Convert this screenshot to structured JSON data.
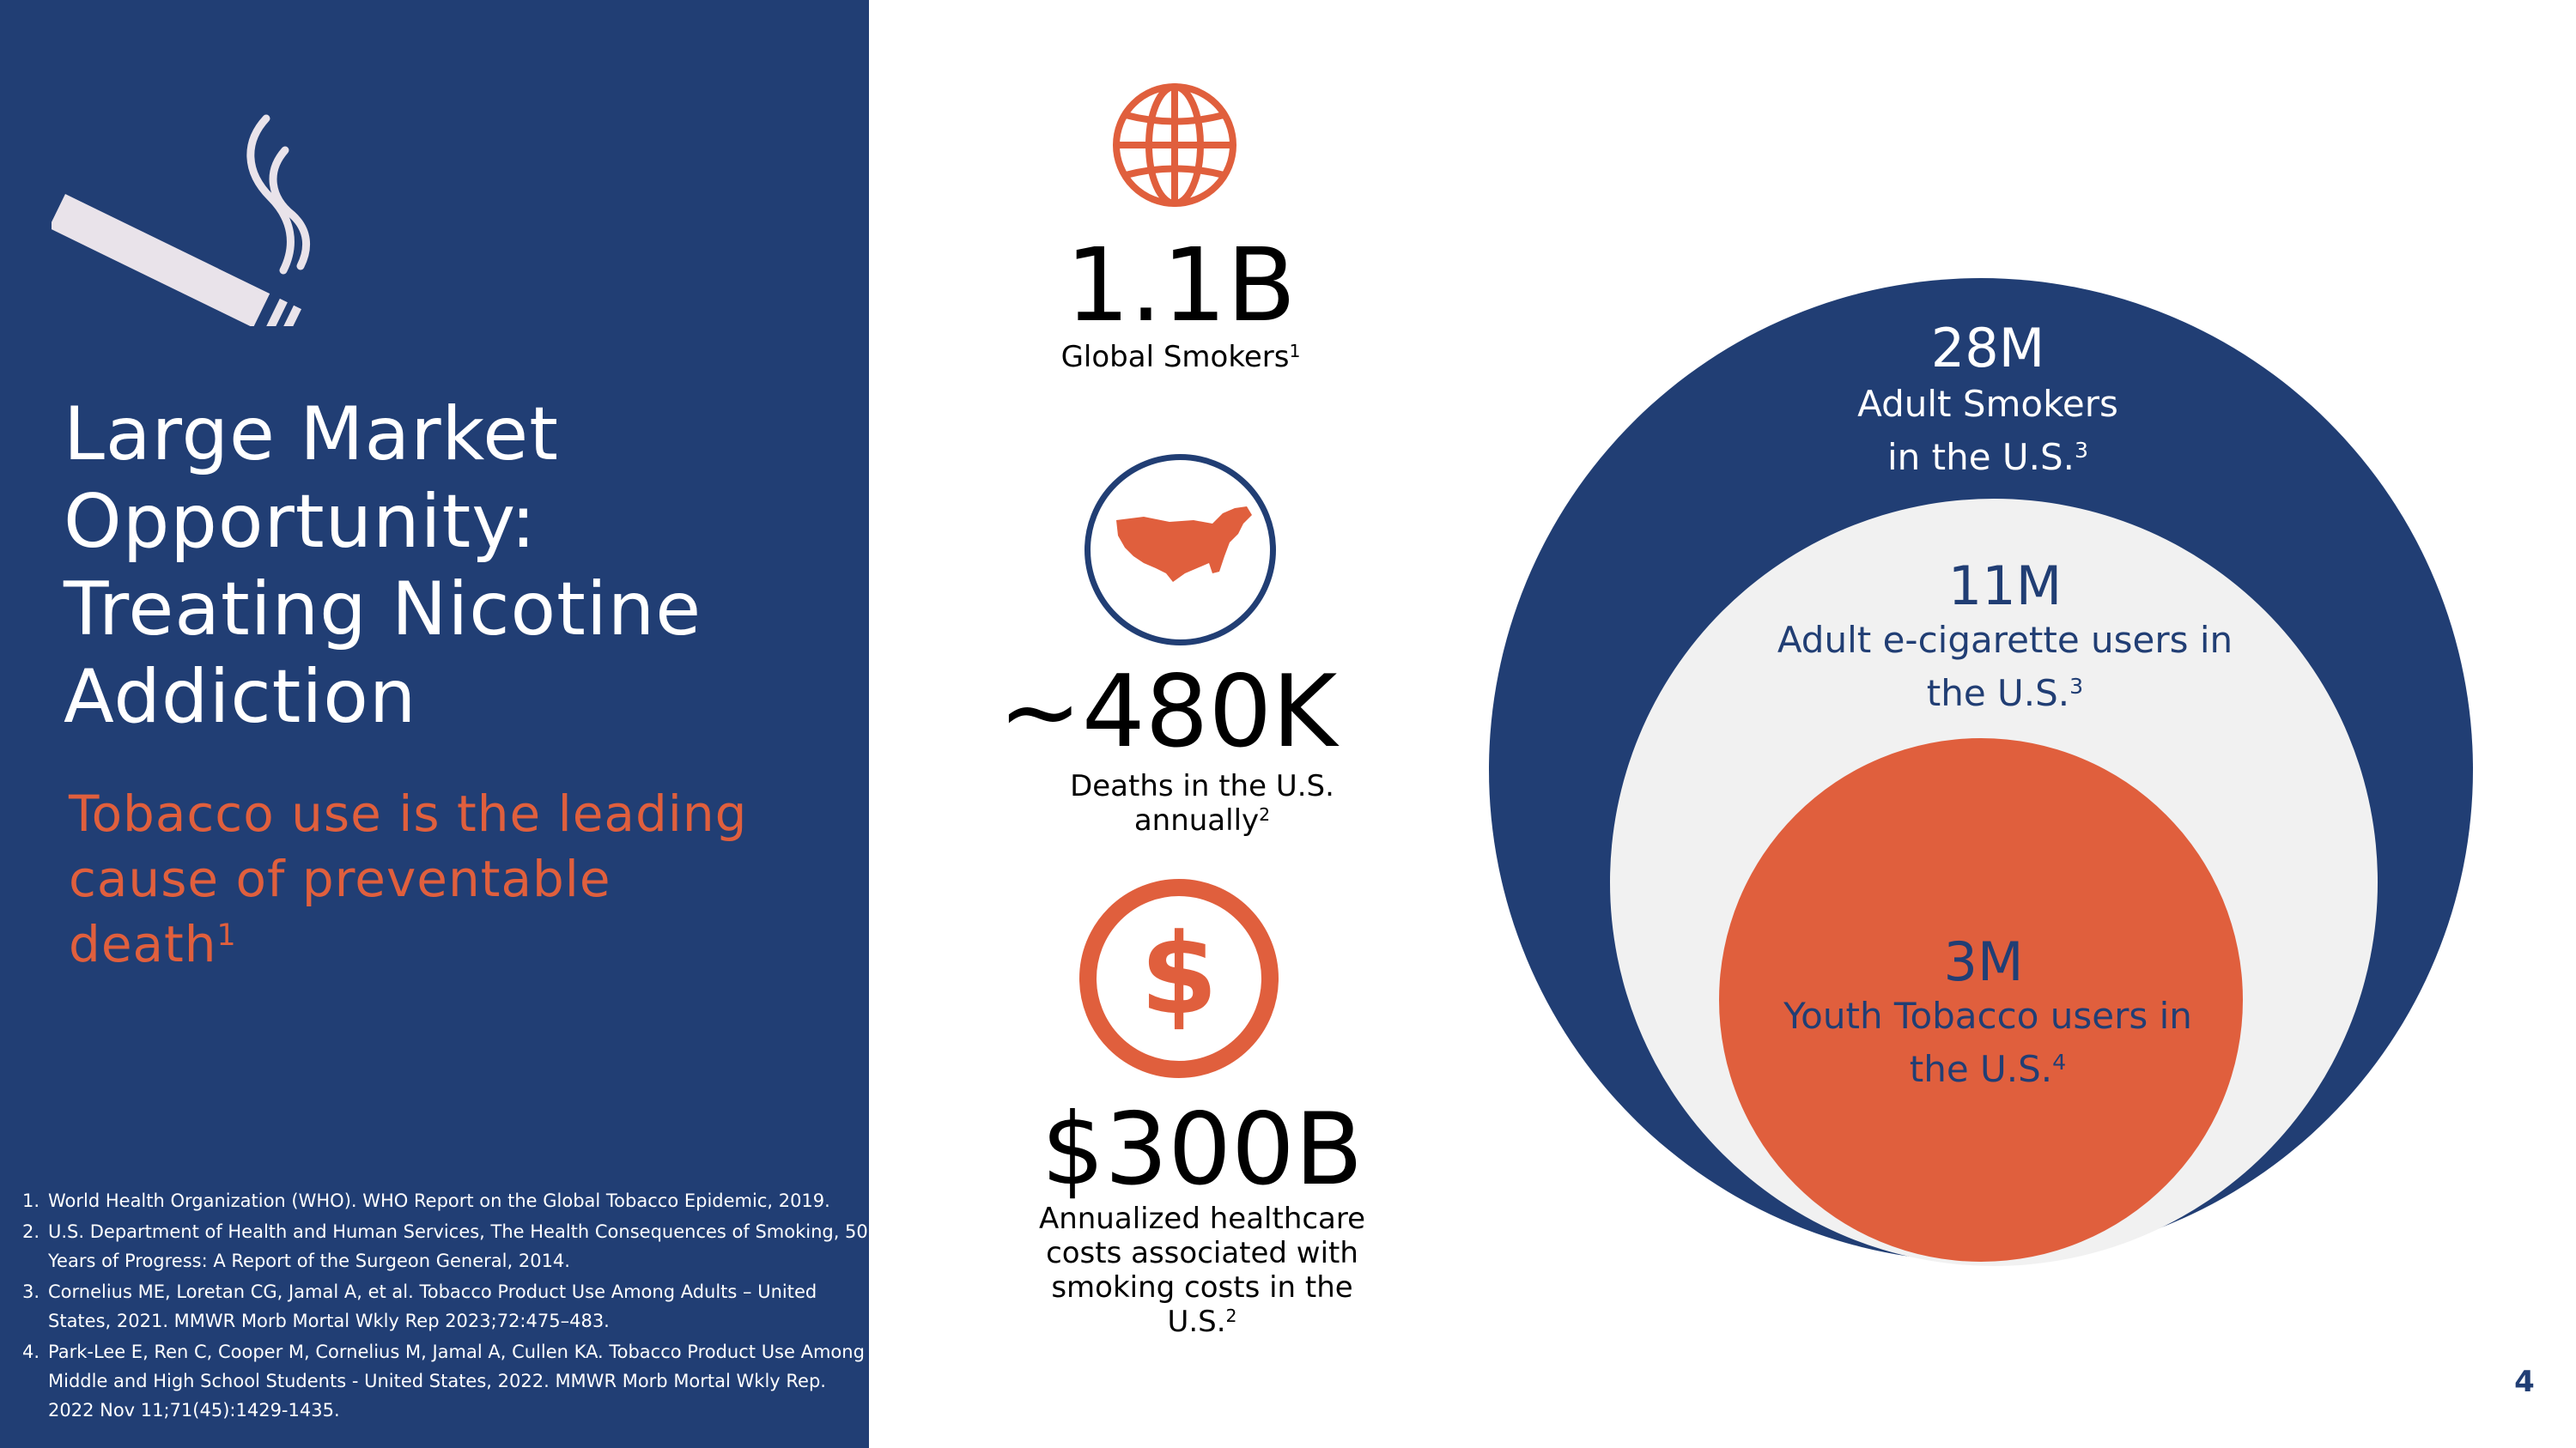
{
  "left": {
    "title_lines": [
      "Large Market",
      "Opportunity:",
      "Treating Nicotine",
      "Addiction"
    ],
    "subtitle_lines": [
      "Tobacco use is the leading",
      "cause of preventable",
      "death"
    ],
    "subtitle_sup": "1",
    "references": [
      {
        "num": "1.",
        "lines": [
          "World Health Organization (WHO). WHO Report on the Global Tobacco Epidemic, 2019."
        ]
      },
      {
        "num": "2.",
        "lines": [
          "U.S. Department of Health and Human Services, The Health Consequences of Smoking, 50",
          "Years of Progress: A Report of the Surgeon General, 2014."
        ]
      },
      {
        "num": "3.",
        "lines": [
          "Cornelius ME, Loretan CG, Jamal A, et al. Tobacco Product Use Among Adults – United",
          "States, 2021. MMWR Morb Mortal Wkly Rep 2023;72:475–483."
        ]
      },
      {
        "num": "4.",
        "lines": [
          "Park-Lee E, Ren C, Cooper M, Cornelius M, Jamal A, Cullen KA. Tobacco Product Use Among",
          "Middle and High School Students - United States, 2022. MMWR Morb Mortal Wkly Rep.",
          "2022 Nov 11;71(45):1429-1435."
        ]
      }
    ]
  },
  "stats": {
    "global": {
      "value": "1.1B",
      "label": "Global Smokers",
      "sup": "1",
      "icon": "globe-icon"
    },
    "deaths": {
      "value": "~480K",
      "label_lines": [
        "Deaths in the U.S.",
        "annually"
      ],
      "sup": "2",
      "icon": "usa-map-icon"
    },
    "costs": {
      "value": "$300B",
      "label_lines": [
        "Annualized healthcare",
        "costs associated with",
        "smoking costs in the",
        "U.S."
      ],
      "sup": "2",
      "icon": "dollar-icon",
      "icon_glyph": "$"
    }
  },
  "bubbles": {
    "outer": {
      "value": "28M",
      "label_lines": [
        "Adult Smokers",
        "in the U.S."
      ],
      "sup": "3",
      "color": "#213e74"
    },
    "middle": {
      "value": "11M",
      "label_lines": [
        "Adult e-cigarette users in",
        "the U.S."
      ],
      "sup": "3",
      "color": "#f1f1f1"
    },
    "inner": {
      "value": "3M",
      "label_lines": [
        "Youth Tobacco users in",
        "the U.S."
      ],
      "sup": "4",
      "color": "#e05f3d"
    }
  },
  "page_number": "4",
  "colors": {
    "navy": "#213e74",
    "orange": "#e05f3d",
    "light_gray": "#f1f1f1"
  }
}
